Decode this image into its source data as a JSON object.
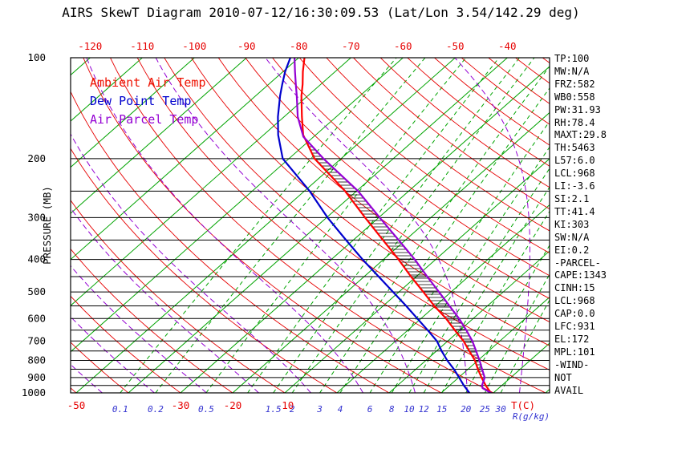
{
  "app": {
    "title": "AIRS SkewT Diagram 2010-07-12/16:30:09.53 (Lat/Lon 3.54/142.29 deg)",
    "background": "#ffffff"
  },
  "legend": {
    "items": [
      {
        "label": "Ambient Air Temp",
        "color": "#ee1100"
      },
      {
        "label": "Dew Point Temp",
        "color": "#0000cd"
      },
      {
        "label": "Air Parcel Temp",
        "color": "#9400d3"
      }
    ]
  },
  "stats_panel": {
    "lines": [
      "TP:100",
      "MW:N/A",
      "FRZ:582",
      "WB0:558",
      "PW:31.93",
      "RH:78.4",
      "MAXT:29.8",
      "TH:5463",
      "L57:6.0",
      "LCL:968",
      "LI:-3.6",
      "SI:2.1",
      "TT:41.4",
      "KI:303",
      "SW:N/A",
      "EI:0.2",
      "-PARCEL-",
      "CAPE:1343",
      "CINH:15",
      "LCL:968",
      "CAP:0.0",
      "LFC:931",
      "EL:172",
      "MPL:101",
      "-WIND-",
      "NOT",
      "AVAIL"
    ]
  },
  "chart_data": {
    "type": "skewt",
    "title": "AIRS SkewT Diagram",
    "datetime": "2010-07-12/16:30:09.53",
    "lat_lon": "3.54/142.29 deg",
    "pressure_axis": {
      "label": "PRESSURE (MB)",
      "scale": "log",
      "range": [
        100,
        1000
      ],
      "tick_labels": [
        100,
        200,
        300,
        400,
        500,
        600,
        700,
        800,
        900,
        1000
      ],
      "line_levels": [
        100,
        200,
        250,
        300,
        350,
        400,
        450,
        500,
        550,
        600,
        650,
        700,
        750,
        800,
        850,
        900,
        950,
        1000
      ]
    },
    "temp_axis": {
      "unit_label": "T(C)",
      "top_labels": [
        -120,
        -110,
        -100,
        -90,
        -80,
        -70,
        -60,
        -50,
        -40
      ],
      "bottom_labels": [
        -50,
        -30,
        -20,
        -10
      ]
    },
    "mixing_ratio_axis": {
      "unit_label": "R(g/kg)",
      "labels": [
        0.1,
        0.2,
        0.5,
        1.5,
        2,
        3,
        4,
        6,
        8,
        10,
        12,
        15,
        20,
        25,
        30
      ]
    },
    "grid": {
      "isotherms": {
        "start": -130,
        "end": 40,
        "step": 10
      },
      "dry_adiabats": {
        "start": -50,
        "end": 200,
        "step": 10
      },
      "moist_adiabats": {
        "start": -55,
        "end": 35,
        "step": 10
      },
      "mixing_ratio_lines": [
        0.1,
        0.2,
        0.5,
        1,
        1.5,
        2,
        3,
        4,
        6,
        8,
        10,
        12,
        15,
        20,
        25,
        30
      ]
    },
    "colors": {
      "isotherm": "#00a300",
      "mixing_ratio": "#00a300",
      "dry_adiabat": "#e60000",
      "moist_adiabat": "#9400d3",
      "pressure_line": "#000000",
      "hatch": "#000000",
      "temperature": "#ff0000",
      "dew_point": "#0000cd",
      "parcel": "#9400d3",
      "temp_labels": "#e60000",
      "mixing_labels": "#3434d0",
      "pressure_labels": "#000000"
    },
    "profiles": {
      "temperature": [
        [
          1000,
          29.5
        ],
        [
          950,
          26.9
        ],
        [
          900,
          24.4
        ],
        [
          850,
          21.9
        ],
        [
          800,
          19.4
        ],
        [
          750,
          16.3
        ],
        [
          700,
          13.0
        ],
        [
          650,
          9.0
        ],
        [
          600,
          4.8
        ],
        [
          550,
          -0.2
        ],
        [
          500,
          -5.3
        ],
        [
          450,
          -11.0
        ],
        [
          400,
          -17.1
        ],
        [
          350,
          -24.3
        ],
        [
          300,
          -32.6
        ],
        [
          250,
          -42.2
        ],
        [
          200,
          -55.1
        ],
        [
          170,
          -62.4
        ],
        [
          150,
          -66.6
        ],
        [
          130,
          -71.2
        ],
        [
          120,
          -73.5
        ],
        [
          110,
          -76.2
        ],
        [
          100,
          -78.9
        ]
      ],
      "dew_point": [
        [
          1000,
          25.4
        ],
        [
          950,
          22.7
        ],
        [
          900,
          20.1
        ],
        [
          850,
          17.3
        ],
        [
          800,
          14.1
        ],
        [
          750,
          11.0
        ],
        [
          700,
          7.9
        ],
        [
          650,
          3.8
        ],
        [
          600,
          -0.7
        ],
        [
          550,
          -5.6
        ],
        [
          500,
          -11.1
        ],
        [
          450,
          -17.2
        ],
        [
          400,
          -24.0
        ],
        [
          350,
          -31.4
        ],
        [
          300,
          -39.8
        ],
        [
          250,
          -49.0
        ],
        [
          200,
          -61.2
        ],
        [
          170,
          -67.2
        ],
        [
          150,
          -71.2
        ],
        [
          130,
          -75.3
        ],
        [
          120,
          -77.4
        ],
        [
          110,
          -79.6
        ],
        [
          100,
          -81.6
        ]
      ],
      "parcel": [
        [
          1000,
          29.5
        ],
        [
          968,
          26.9
        ],
        [
          950,
          26.2
        ],
        [
          900,
          25.0
        ],
        [
          850,
          22.7
        ],
        [
          800,
          20.3
        ],
        [
          750,
          17.6
        ],
        [
          700,
          14.7
        ],
        [
          650,
          11.2
        ],
        [
          600,
          7.3
        ],
        [
          550,
          2.7
        ],
        [
          500,
          -2.3
        ],
        [
          450,
          -7.9
        ],
        [
          400,
          -14.0
        ],
        [
          350,
          -21.3
        ],
        [
          300,
          -29.8
        ],
        [
          250,
          -39.7
        ],
        [
          200,
          -53.4
        ],
        [
          172,
          -62.0
        ],
        [
          150,
          -67.4
        ],
        [
          130,
          -72.1
        ],
        [
          120,
          -74.8
        ],
        [
          110,
          -77.7
        ],
        [
          100,
          -80.8
        ]
      ]
    },
    "cape_hatch": {
      "from_pressure": 931,
      "to_pressure": 172
    }
  }
}
